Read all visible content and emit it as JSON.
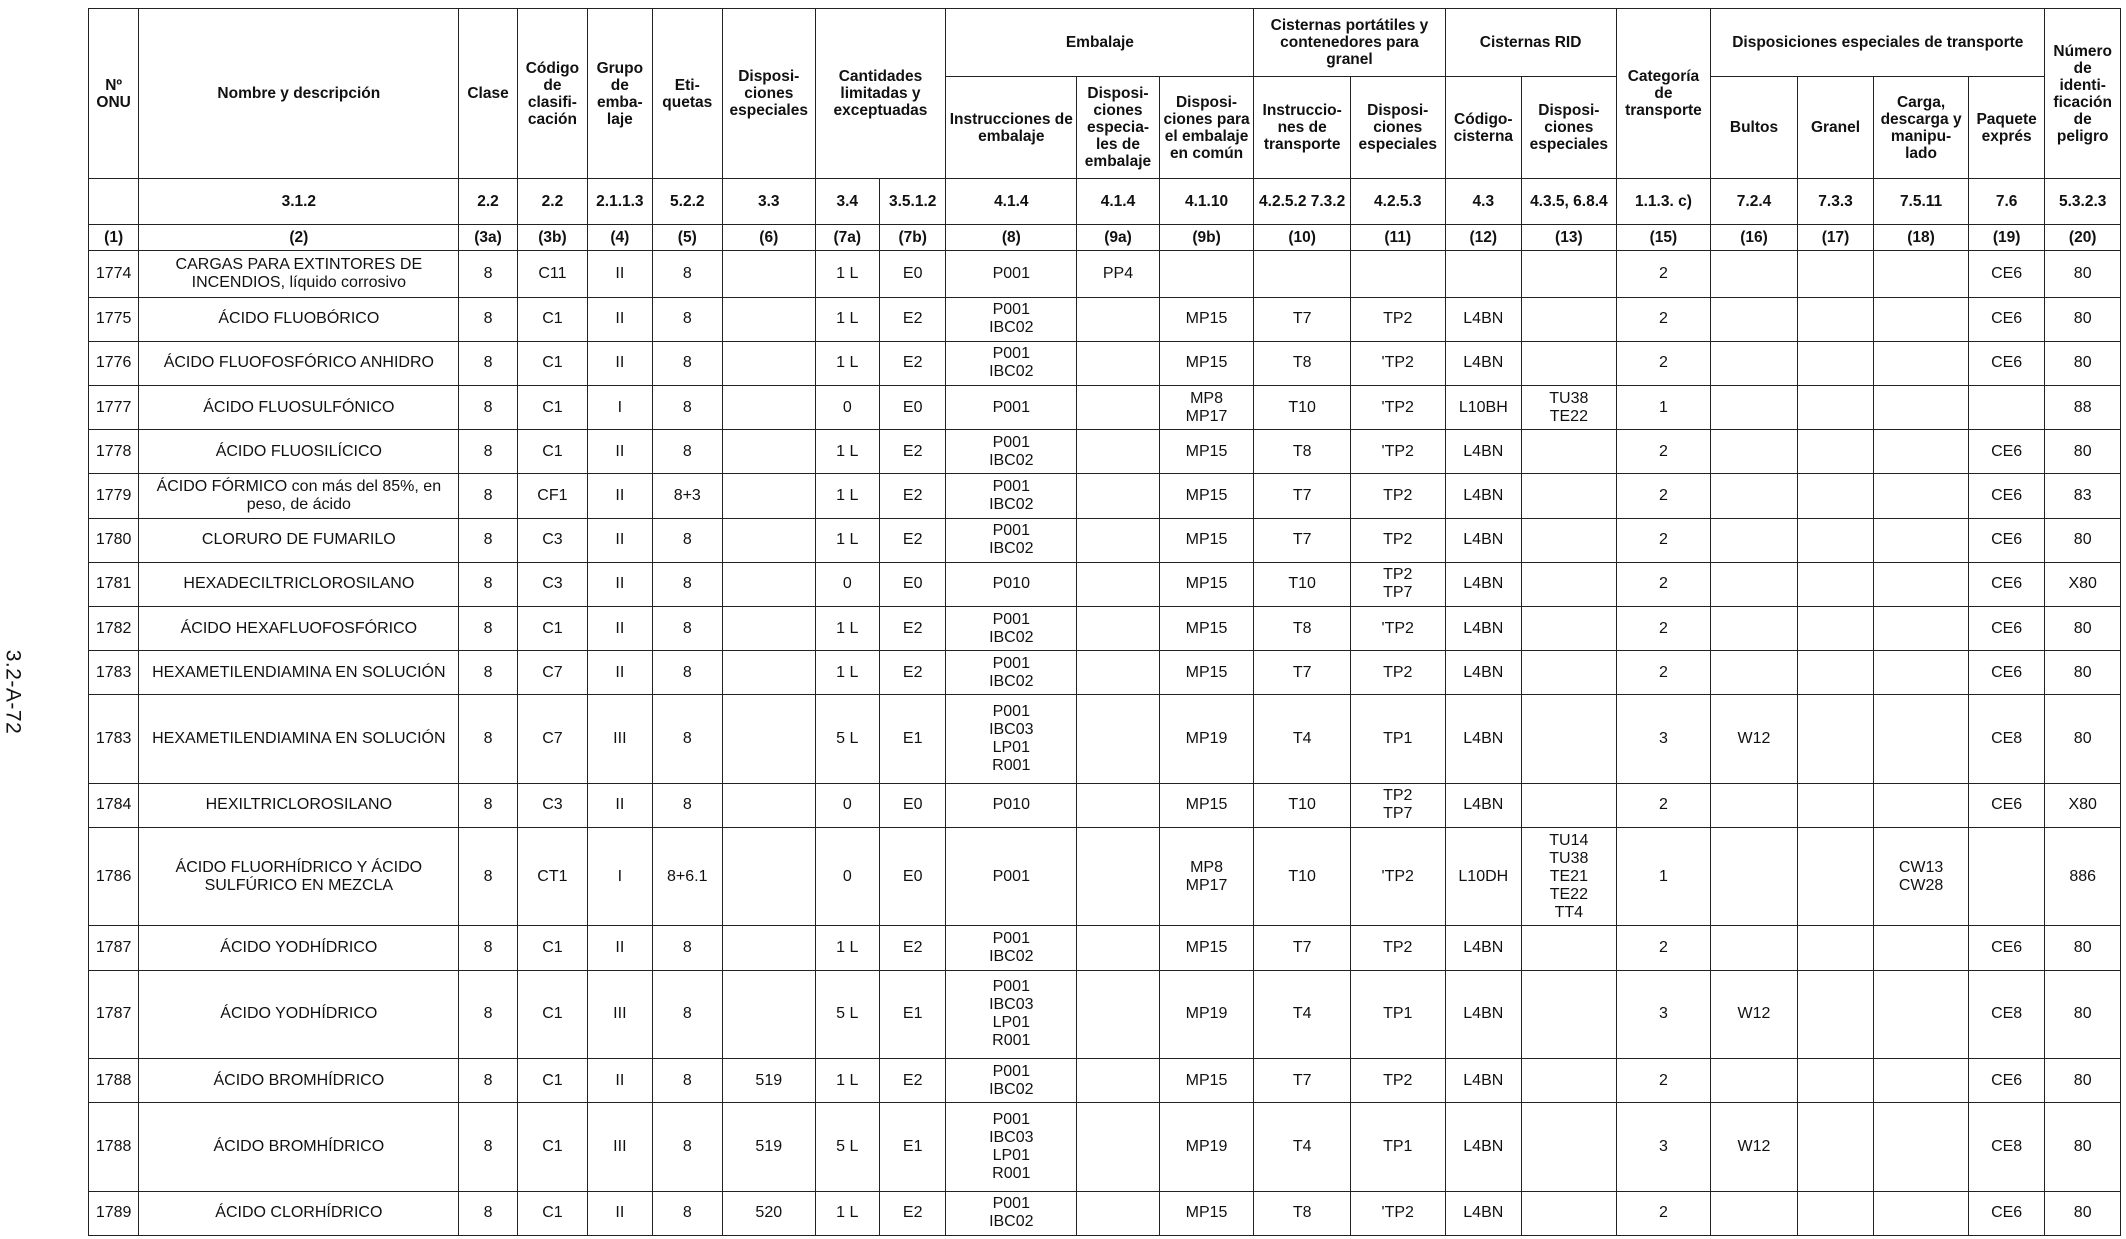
{
  "page": {
    "side_label": "3.2-A-72"
  },
  "headers": {
    "un_no": "Nº ONU",
    "name": "Nombre y descripción",
    "clase": "Clase",
    "codigo": "Código de clasifi-cación",
    "grupo": "Grupo de emba-laje",
    "etiquetas": "Eti-quetas",
    "disp_esp": "Disposi-ciones especiales",
    "cantidades": "Cantidades limitadas y exceptuadas",
    "embalaje": "Embalaje",
    "instr_emb": "Instrucciones de embalaje",
    "disp_esp_emb": "Disposi-ciones especia-les de embalaje",
    "disp_emb_comun": "Disposi-ciones para el embalaje en común",
    "cisternas_port": "Cisternas portátiles y contenedores para granel",
    "instr_transp": "Instruccio-nes de transporte",
    "disp_esp_cist": "Disposi-ciones especiales",
    "cisternas_rid": "Cisternas RID",
    "codigo_cisterna": "Código-cisterna",
    "disp_esp_rid": "Disposi-ciones especiales",
    "categoria": "Categoría de transporte",
    "disp_esp_transp": "Disposiciones especiales de transporte",
    "bultos": "Bultos",
    "granel": "Granel",
    "carga": "Carga, descarga y manipu-lado",
    "paquete": "Paquete exprés",
    "numero_peligro": "Número de identi-ficación de peligro"
  },
  "refs": [
    "",
    "3.1.2",
    "2.2",
    "2.2",
    "2.1.1.3",
    "5.2.2",
    "3.3",
    "3.4",
    "3.5.1.2",
    "4.1.4",
    "4.1.4",
    "4.1.10",
    "4.2.5.2 7.3.2",
    "4.2.5.3",
    "4.3",
    "4.3.5, 6.8.4",
    "1.1.3. c)",
    "7.2.4",
    "7.3.3",
    "7.5.11",
    "7.6",
    "5.3.2.3"
  ],
  "col_nums": [
    "(1)",
    "(2)",
    "(3a)",
    "(3b)",
    "(4)",
    "(5)",
    "(6)",
    "(7a)",
    "(7b)",
    "(8)",
    "(9a)",
    "(9b)",
    "(10)",
    "(11)",
    "(12)",
    "(13)",
    "(15)",
    "(16)",
    "(17)",
    "(18)",
    "(19)",
    "(20)"
  ],
  "rows": [
    {
      "un": "1774",
      "name": "CARGAS PARA EXTINTORES DE INCENDIOS, líquido corrosivo",
      "clase": "8",
      "cod": "C11",
      "grupo": "II",
      "etiq": "8",
      "disp": "",
      "c7a": "1 L",
      "c7b": "E0",
      "instr": "P001",
      "disp9a": "PP4",
      "disp9b": "",
      "c10": "",
      "c11": "",
      "c12": "",
      "c13": "",
      "cat": "2",
      "c16": "",
      "c17": "",
      "c18": "",
      "c19": "CE6",
      "c20": "80"
    },
    {
      "un": "1775",
      "name": "ÁCIDO FLUOBÓRICO",
      "clase": "8",
      "cod": "C1",
      "grupo": "II",
      "etiq": "8",
      "disp": "",
      "c7a": "1 L",
      "c7b": "E2",
      "instr": "P001\nIBC02",
      "disp9a": "",
      "disp9b": "MP15",
      "c10": "T7",
      "c11": "TP2",
      "c12": "L4BN",
      "c13": "",
      "cat": "2",
      "c16": "",
      "c17": "",
      "c18": "",
      "c19": "CE6",
      "c20": "80"
    },
    {
      "un": "1776",
      "name": "ÁCIDO FLUOFOSFÓRICO ANHIDRO",
      "clase": "8",
      "cod": "C1",
      "grupo": "II",
      "etiq": "8",
      "disp": "",
      "c7a": "1 L",
      "c7b": "E2",
      "instr": "P001\nIBC02",
      "disp9a": "",
      "disp9b": "MP15",
      "c10": "T8",
      "c11": "'TP2",
      "c12": "L4BN",
      "c13": "",
      "cat": "2",
      "c16": "",
      "c17": "",
      "c18": "",
      "c19": "CE6",
      "c20": "80"
    },
    {
      "un": "1777",
      "name": "ÁCIDO FLUOSULFÓNICO",
      "clase": "8",
      "cod": "C1",
      "grupo": "I",
      "etiq": "8",
      "disp": "",
      "c7a": "0",
      "c7b": "E0",
      "instr": "P001",
      "disp9a": "",
      "disp9b": "MP8\nMP17",
      "c10": "T10",
      "c11": "'TP2",
      "c12": "L10BH",
      "c13": "TU38\nTE22",
      "cat": "1",
      "c16": "",
      "c17": "",
      "c18": "",
      "c19": "",
      "c20": "88"
    },
    {
      "un": "1778",
      "name": "ÁCIDO FLUOSILÍCICO",
      "clase": "8",
      "cod": "C1",
      "grupo": "II",
      "etiq": "8",
      "disp": "",
      "c7a": "1 L",
      "c7b": "E2",
      "instr": "P001\nIBC02",
      "disp9a": "",
      "disp9b": "MP15",
      "c10": "T8",
      "c11": "'TP2",
      "c12": "L4BN",
      "c13": "",
      "cat": "2",
      "c16": "",
      "c17": "",
      "c18": "",
      "c19": "CE6",
      "c20": "80"
    },
    {
      "un": "1779",
      "name": "ÁCIDO FÓRMICO con más del 85%, en peso, de ácido",
      "clase": "8",
      "cod": "CF1",
      "grupo": "II",
      "etiq": "8+3",
      "disp": "",
      "c7a": "1 L",
      "c7b": "E2",
      "instr": "P001\nIBC02",
      "disp9a": "",
      "disp9b": "MP15",
      "c10": "T7",
      "c11": "TP2",
      "c12": "L4BN",
      "c13": "",
      "cat": "2",
      "c16": "",
      "c17": "",
      "c18": "",
      "c19": "CE6",
      "c20": "83"
    },
    {
      "un": "1780",
      "name": "CLORURO DE FUMARILO",
      "clase": "8",
      "cod": "C3",
      "grupo": "II",
      "etiq": "8",
      "disp": "",
      "c7a": "1 L",
      "c7b": "E2",
      "instr": "P001\nIBC02",
      "disp9a": "",
      "disp9b": "MP15",
      "c10": "T7",
      "c11": "TP2",
      "c12": "L4BN",
      "c13": "",
      "cat": "2",
      "c16": "",
      "c17": "",
      "c18": "",
      "c19": "CE6",
      "c20": "80"
    },
    {
      "un": "1781",
      "name": "HEXADECILTRICLOROSILANO",
      "clase": "8",
      "cod": "C3",
      "grupo": "II",
      "etiq": "8",
      "disp": "",
      "c7a": "0",
      "c7b": "E0",
      "instr": "P010",
      "disp9a": "",
      "disp9b": "MP15",
      "c10": "T10",
      "c11": "TP2\nTP7",
      "c12": "L4BN",
      "c13": "",
      "cat": "2",
      "c16": "",
      "c17": "",
      "c18": "",
      "c19": "CE6",
      "c20": "X80"
    },
    {
      "un": "1782",
      "name": "ÁCIDO HEXAFLUOFOSFÓRICO",
      "clase": "8",
      "cod": "C1",
      "grupo": "II",
      "etiq": "8",
      "disp": "",
      "c7a": "1 L",
      "c7b": "E2",
      "instr": "P001\nIBC02",
      "disp9a": "",
      "disp9b": "MP15",
      "c10": "T8",
      "c11": "'TP2",
      "c12": "L4BN",
      "c13": "",
      "cat": "2",
      "c16": "",
      "c17": "",
      "c18": "",
      "c19": "CE6",
      "c20": "80"
    },
    {
      "un": "1783",
      "name": "HEXAMETILENDIAMINA EN SOLUCIÓN",
      "clase": "8",
      "cod": "C7",
      "grupo": "II",
      "etiq": "8",
      "disp": "",
      "c7a": "1 L",
      "c7b": "E2",
      "instr": "P001\nIBC02",
      "disp9a": "",
      "disp9b": "MP15",
      "c10": "T7",
      "c11": "TP2",
      "c12": "L4BN",
      "c13": "",
      "cat": "2",
      "c16": "",
      "c17": "",
      "c18": "",
      "c19": "CE6",
      "c20": "80"
    },
    {
      "un": "1783",
      "name": "HEXAMETILENDIAMINA EN SOLUCIÓN",
      "clase": "8",
      "cod": "C7",
      "grupo": "III",
      "etiq": "8",
      "disp": "",
      "c7a": "5 L",
      "c7b": "E1",
      "instr": "P001\nIBC03\nLP01\nR001",
      "disp9a": "",
      "disp9b": "MP19",
      "c10": "T4",
      "c11": "TP1",
      "c12": "L4BN",
      "c13": "",
      "cat": "3",
      "c16": "W12",
      "c17": "",
      "c18": "",
      "c19": "CE8",
      "c20": "80"
    },
    {
      "un": "1784",
      "name": "HEXILTRICLOROSILANO",
      "clase": "8",
      "cod": "C3",
      "grupo": "II",
      "etiq": "8",
      "disp": "",
      "c7a": "0",
      "c7b": "E0",
      "instr": "P010",
      "disp9a": "",
      "disp9b": "MP15",
      "c10": "T10",
      "c11": "TP2\nTP7",
      "c12": "L4BN",
      "c13": "",
      "cat": "2",
      "c16": "",
      "c17": "",
      "c18": "",
      "c19": "CE6",
      "c20": "X80"
    },
    {
      "un": "1786",
      "name": "ÁCIDO FLUORHÍDRICO Y ÁCIDO SULFÚRICO EN MEZCLA",
      "clase": "8",
      "cod": "CT1",
      "grupo": "I",
      "etiq": "8+6.1",
      "disp": "",
      "c7a": "0",
      "c7b": "E0",
      "instr": "P001",
      "disp9a": "",
      "disp9b": "MP8\nMP17",
      "c10": "T10",
      "c11": "'TP2",
      "c12": "L10DH",
      "c13": "TU14\nTU38\nTE21\nTE22\nTT4",
      "cat": "1",
      "c16": "",
      "c17": "",
      "c18": "CW13\nCW28",
      "c19": "",
      "c20": "886"
    },
    {
      "un": "1787",
      "name": "ÁCIDO YODHÍDRICO",
      "clase": "8",
      "cod": "C1",
      "grupo": "II",
      "etiq": "8",
      "disp": "",
      "c7a": "1 L",
      "c7b": "E2",
      "instr": "P001\nIBC02",
      "disp9a": "",
      "disp9b": "MP15",
      "c10": "T7",
      "c11": "TP2",
      "c12": "L4BN",
      "c13": "",
      "cat": "2",
      "c16": "",
      "c17": "",
      "c18": "",
      "c19": "CE6",
      "c20": "80"
    },
    {
      "un": "1787",
      "name": "ÁCIDO YODHÍDRICO",
      "clase": "8",
      "cod": "C1",
      "grupo": "III",
      "etiq": "8",
      "disp": "",
      "c7a": "5 L",
      "c7b": "E1",
      "instr": "P001\nIBC03\nLP01\nR001",
      "disp9a": "",
      "disp9b": "MP19",
      "c10": "T4",
      "c11": "TP1",
      "c12": "L4BN",
      "c13": "",
      "cat": "3",
      "c16": "W12",
      "c17": "",
      "c18": "",
      "c19": "CE8",
      "c20": "80"
    },
    {
      "un": "1788",
      "name": "ÁCIDO BROMHÍDRICO",
      "clase": "8",
      "cod": "C1",
      "grupo": "II",
      "etiq": "8",
      "disp": "519",
      "c7a": "1 L",
      "c7b": "E2",
      "instr": "P001\nIBC02",
      "disp9a": "",
      "disp9b": "MP15",
      "c10": "T7",
      "c11": "TP2",
      "c12": "L4BN",
      "c13": "",
      "cat": "2",
      "c16": "",
      "c17": "",
      "c18": "",
      "c19": "CE6",
      "c20": "80"
    },
    {
      "un": "1788",
      "name": "ÁCIDO BROMHÍDRICO",
      "clase": "8",
      "cod": "C1",
      "grupo": "III",
      "etiq": "8",
      "disp": "519",
      "c7a": "5 L",
      "c7b": "E1",
      "instr": "P001\nIBC03\nLP01\nR001",
      "disp9a": "",
      "disp9b": "MP19",
      "c10": "T4",
      "c11": "TP1",
      "c12": "L4BN",
      "c13": "",
      "cat": "3",
      "c16": "W12",
      "c17": "",
      "c18": "",
      "c19": "CE8",
      "c20": "80"
    },
    {
      "un": "1789",
      "name": "ÁCIDO CLORHÍDRICO",
      "clase": "8",
      "cod": "C1",
      "grupo": "II",
      "etiq": "8",
      "disp": "520",
      "c7a": "1 L",
      "c7b": "E2",
      "instr": "P001\nIBC02",
      "disp9a": "",
      "disp9b": "MP15",
      "c10": "T8",
      "c11": "'TP2",
      "c12": "L4BN",
      "c13": "",
      "cat": "2",
      "c16": "",
      "c17": "",
      "c18": "",
      "c19": "CE6",
      "c20": "80"
    }
  ]
}
